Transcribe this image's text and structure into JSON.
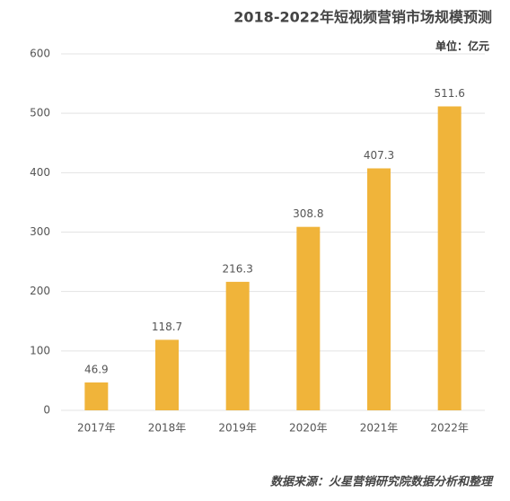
{
  "chart_data": {
    "type": "bar",
    "title": "2018-2022年短视频营销市场规模预测",
    "unit": "单位：亿元",
    "source": "数据来源：火星营销研究院数据分析和整理",
    "categories": [
      "2017年",
      "2018年",
      "2019年",
      "2020年",
      "2021年",
      "2022年"
    ],
    "values": [
      46.9,
      118.7,
      216.3,
      308.8,
      407.3,
      511.6
    ],
    "color": "#f0b43a",
    "ylim": [
      0,
      600
    ],
    "yticks": [
      0,
      100,
      200,
      300,
      400,
      500,
      600
    ],
    "grid": true
  }
}
